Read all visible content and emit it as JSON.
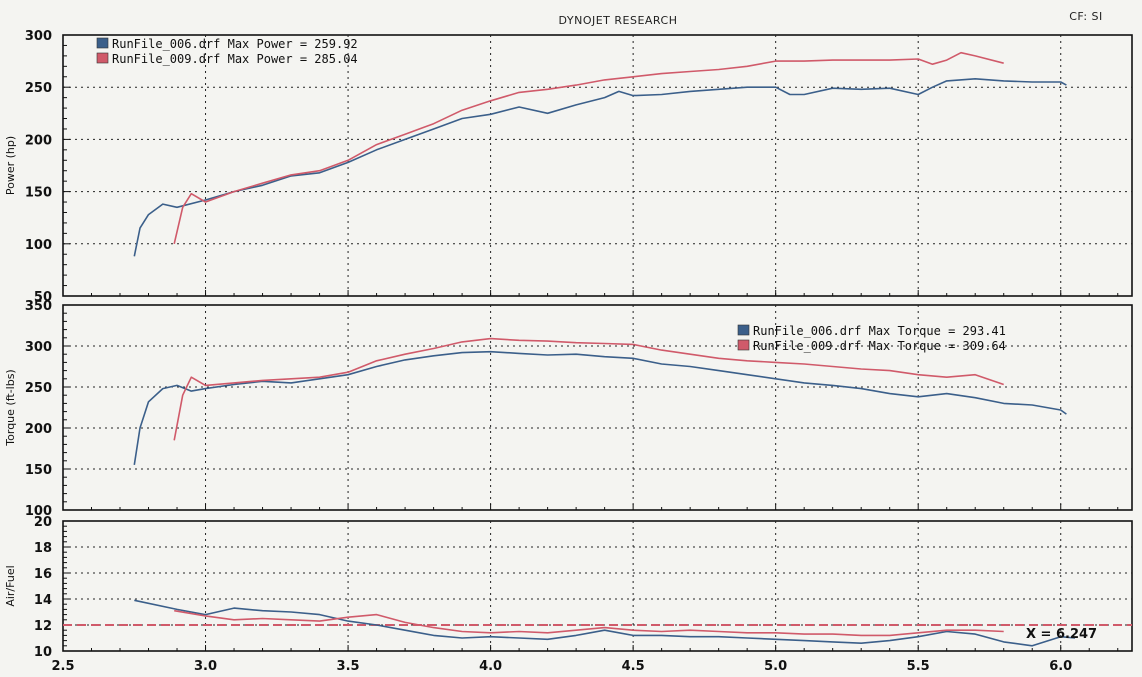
{
  "header": {
    "title": "DYNOJET RESEARCH",
    "cf": "CF: SI"
  },
  "colors": {
    "run006": "#3b5f8a",
    "run009": "#d05a6a",
    "ref_line": "#d05a6a",
    "grid": "#222222"
  },
  "chart_data": [
    {
      "type": "line",
      "ylabel": "Power (hp)",
      "ylim": [
        50,
        300
      ],
      "yticks": [
        "300",
        "250",
        "200",
        "150",
        "100",
        "50"
      ],
      "xlim": [
        2.5,
        6.25
      ],
      "grid": true,
      "legend_position": "top-left",
      "series": [
        {
          "name": "RunFile_006.drf Max Power = 259.92",
          "points": [
            [
              2.75,
              88
            ],
            [
              2.77,
              115
            ],
            [
              2.8,
              128
            ],
            [
              2.85,
              138
            ],
            [
              2.9,
              135
            ],
            [
              3.0,
              142
            ],
            [
              3.1,
              150
            ],
            [
              3.2,
              156
            ],
            [
              3.3,
              165
            ],
            [
              3.4,
              168
            ],
            [
              3.5,
              178
            ],
            [
              3.6,
              190
            ],
            [
              3.7,
              200
            ],
            [
              3.8,
              210
            ],
            [
              3.9,
              220
            ],
            [
              4.0,
              224
            ],
            [
              4.1,
              231
            ],
            [
              4.2,
              225
            ],
            [
              4.3,
              233
            ],
            [
              4.4,
              240
            ],
            [
              4.45,
              246
            ],
            [
              4.5,
              242
            ],
            [
              4.6,
              243
            ],
            [
              4.7,
              246
            ],
            [
              4.8,
              248
            ],
            [
              4.9,
              250
            ],
            [
              5.0,
              250
            ],
            [
              5.05,
              243
            ],
            [
              5.1,
              243
            ],
            [
              5.2,
              249
            ],
            [
              5.3,
              248
            ],
            [
              5.4,
              249
            ],
            [
              5.5,
              243
            ],
            [
              5.55,
              250
            ],
            [
              5.6,
              256
            ],
            [
              5.7,
              258
            ],
            [
              5.8,
              256
            ],
            [
              5.9,
              255
            ],
            [
              6.0,
              255
            ],
            [
              6.02,
              252
            ]
          ]
        },
        {
          "name": "RunFile_009.drf Max Power = 285.04",
          "points": [
            [
              2.89,
              100
            ],
            [
              2.92,
              135
            ],
            [
              2.95,
              148
            ],
            [
              3.0,
              140
            ],
            [
              3.1,
              150
            ],
            [
              3.2,
              158
            ],
            [
              3.3,
              166
            ],
            [
              3.4,
              170
            ],
            [
              3.5,
              180
            ],
            [
              3.6,
              195
            ],
            [
              3.7,
              205
            ],
            [
              3.8,
              215
            ],
            [
              3.9,
              228
            ],
            [
              4.0,
              237
            ],
            [
              4.1,
              245
            ],
            [
              4.2,
              248
            ],
            [
              4.3,
              252
            ],
            [
              4.4,
              257
            ],
            [
              4.5,
              260
            ],
            [
              4.6,
              263
            ],
            [
              4.7,
              265
            ],
            [
              4.8,
              267
            ],
            [
              4.9,
              270
            ],
            [
              5.0,
              275
            ],
            [
              5.1,
              275
            ],
            [
              5.2,
              276
            ],
            [
              5.3,
              276
            ],
            [
              5.4,
              276
            ],
            [
              5.5,
              277
            ],
            [
              5.55,
              272
            ],
            [
              5.6,
              276
            ],
            [
              5.65,
              283
            ],
            [
              5.7,
              280
            ],
            [
              5.8,
              273
            ]
          ]
        }
      ]
    },
    {
      "type": "line",
      "ylabel": "Torque (ft-lbs)",
      "ylim": [
        100,
        350
      ],
      "yticks": [
        "350",
        "300",
        "250",
        "200",
        "150",
        "100"
      ],
      "xlim": [
        2.5,
        6.25
      ],
      "grid": true,
      "legend_position": "top-right",
      "series": [
        {
          "name": "RunFile_006.drf Max Torque = 293.41",
          "points": [
            [
              2.75,
              155
            ],
            [
              2.77,
              200
            ],
            [
              2.8,
              232
            ],
            [
              2.85,
              248
            ],
            [
              2.9,
              252
            ],
            [
              2.95,
              245
            ],
            [
              3.0,
              248
            ],
            [
              3.1,
              253
            ],
            [
              3.2,
              257
            ],
            [
              3.3,
              255
            ],
            [
              3.4,
              260
            ],
            [
              3.5,
              265
            ],
            [
              3.6,
              275
            ],
            [
              3.7,
              283
            ],
            [
              3.8,
              288
            ],
            [
              3.9,
              292
            ],
            [
              4.0,
              293
            ],
            [
              4.1,
              291
            ],
            [
              4.2,
              289
            ],
            [
              4.3,
              290
            ],
            [
              4.4,
              287
            ],
            [
              4.5,
              285
            ],
            [
              4.6,
              278
            ],
            [
              4.7,
              275
            ],
            [
              4.8,
              270
            ],
            [
              4.9,
              265
            ],
            [
              5.0,
              260
            ],
            [
              5.1,
              255
            ],
            [
              5.2,
              252
            ],
            [
              5.3,
              248
            ],
            [
              5.4,
              242
            ],
            [
              5.5,
              238
            ],
            [
              5.6,
              242
            ],
            [
              5.7,
              237
            ],
            [
              5.8,
              230
            ],
            [
              5.9,
              228
            ],
            [
              6.0,
              222
            ],
            [
              6.02,
              217
            ]
          ]
        },
        {
          "name": "RunFile_009.drf Max Torque = 309.64",
          "points": [
            [
              2.89,
              185
            ],
            [
              2.92,
              240
            ],
            [
              2.95,
              262
            ],
            [
              3.0,
              252
            ],
            [
              3.1,
              255
            ],
            [
              3.2,
              258
            ],
            [
              3.3,
              260
            ],
            [
              3.4,
              262
            ],
            [
              3.5,
              268
            ],
            [
              3.6,
              282
            ],
            [
              3.7,
              290
            ],
            [
              3.8,
              297
            ],
            [
              3.9,
              305
            ],
            [
              4.0,
              309
            ],
            [
              4.1,
              307
            ],
            [
              4.2,
              306
            ],
            [
              4.3,
              304
            ],
            [
              4.4,
              303
            ],
            [
              4.5,
              302
            ],
            [
              4.6,
              295
            ],
            [
              4.7,
              290
            ],
            [
              4.8,
              285
            ],
            [
              4.9,
              282
            ],
            [
              5.0,
              280
            ],
            [
              5.1,
              278
            ],
            [
              5.2,
              275
            ],
            [
              5.3,
              272
            ],
            [
              5.4,
              270
            ],
            [
              5.5,
              265
            ],
            [
              5.6,
              262
            ],
            [
              5.7,
              265
            ],
            [
              5.8,
              253
            ]
          ]
        }
      ]
    },
    {
      "type": "line",
      "ylabel": "Air/Fuel",
      "ylim": [
        10,
        20
      ],
      "yticks": [
        "20",
        "18",
        "16",
        "14",
        "12",
        "10"
      ],
      "xlim": [
        2.5,
        6.25
      ],
      "xticks": [
        "2.5",
        "3.0",
        "3.5",
        "4.0",
        "4.5",
        "5.0",
        "5.5",
        "6.0"
      ],
      "grid": true,
      "reference_y": 12,
      "cursor_label": "X = 6.247",
      "series": [
        {
          "name": "RunFile_006",
          "points": [
            [
              2.75,
              13.9
            ],
            [
              2.9,
              13.2
            ],
            [
              3.0,
              12.8
            ],
            [
              3.1,
              13.3
            ],
            [
              3.2,
              13.1
            ],
            [
              3.3,
              13.0
            ],
            [
              3.4,
              12.8
            ],
            [
              3.5,
              12.3
            ],
            [
              3.6,
              12.0
            ],
            [
              3.7,
              11.6
            ],
            [
              3.8,
              11.2
            ],
            [
              3.9,
              11.0
            ],
            [
              4.0,
              11.1
            ],
            [
              4.1,
              11.0
            ],
            [
              4.2,
              10.9
            ],
            [
              4.3,
              11.2
            ],
            [
              4.4,
              11.6
            ],
            [
              4.5,
              11.2
            ],
            [
              4.6,
              11.2
            ],
            [
              4.7,
              11.1
            ],
            [
              4.8,
              11.1
            ],
            [
              4.9,
              11.0
            ],
            [
              5.0,
              10.9
            ],
            [
              5.1,
              10.8
            ],
            [
              5.2,
              10.7
            ],
            [
              5.3,
              10.6
            ],
            [
              5.4,
              10.8
            ],
            [
              5.5,
              11.1
            ],
            [
              5.6,
              11.5
            ],
            [
              5.7,
              11.3
            ],
            [
              5.8,
              10.7
            ],
            [
              5.9,
              10.4
            ],
            [
              6.0,
              11.1
            ],
            [
              6.05,
              11.0
            ]
          ]
        },
        {
          "name": "RunFile_009",
          "points": [
            [
              2.89,
              13.1
            ],
            [
              3.0,
              12.7
            ],
            [
              3.1,
              12.4
            ],
            [
              3.2,
              12.5
            ],
            [
              3.3,
              12.4
            ],
            [
              3.4,
              12.3
            ],
            [
              3.5,
              12.6
            ],
            [
              3.6,
              12.8
            ],
            [
              3.7,
              12.2
            ],
            [
              3.8,
              11.8
            ],
            [
              3.9,
              11.5
            ],
            [
              4.0,
              11.4
            ],
            [
              4.1,
              11.5
            ],
            [
              4.2,
              11.4
            ],
            [
              4.3,
              11.6
            ],
            [
              4.4,
              11.8
            ],
            [
              4.5,
              11.6
            ],
            [
              4.6,
              11.5
            ],
            [
              4.7,
              11.6
            ],
            [
              4.8,
              11.5
            ],
            [
              4.9,
              11.4
            ],
            [
              5.0,
              11.4
            ],
            [
              5.1,
              11.3
            ],
            [
              5.2,
              11.3
            ],
            [
              5.3,
              11.2
            ],
            [
              5.4,
              11.2
            ],
            [
              5.5,
              11.4
            ],
            [
              5.6,
              11.6
            ],
            [
              5.7,
              11.6
            ],
            [
              5.8,
              11.5
            ]
          ]
        }
      ]
    }
  ]
}
